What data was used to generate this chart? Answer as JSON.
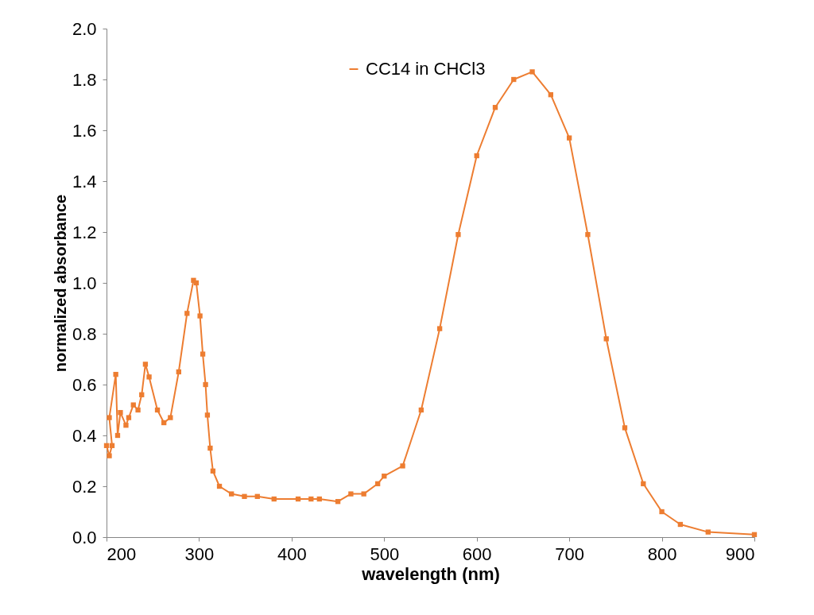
{
  "chart_data": {
    "type": "line",
    "xlabel": "wavelength (nm)",
    "ylabel": "normalized absorbance",
    "xlim": [
      200,
      900
    ],
    "xticks": [
      200,
      300,
      400,
      500,
      600,
      700,
      800,
      900
    ],
    "ylim": [
      0,
      2
    ],
    "yticks": [
      {
        "value": 0,
        "label": "0.0"
      },
      0.2,
      0.4,
      0.6,
      0.8,
      {
        "value": 1,
        "label": "1.0"
      },
      1.2,
      1.4,
      1.6,
      1.8,
      {
        "value": 2,
        "label": "2.0"
      }
    ],
    "grid": false,
    "legend": "top",
    "marker": "square",
    "line_style": "solid",
    "series": [
      {
        "name": "CC14 in CHCl3",
        "color": "#ed7d31",
        "x": [
          200,
          203,
          206,
          203,
          210,
          212,
          215,
          221,
          224,
          229,
          234,
          238,
          242,
          246,
          255,
          262,
          269,
          278,
          287,
          294,
          297,
          301,
          304,
          307,
          309,
          312,
          315,
          322,
          335,
          349,
          363,
          381,
          407,
          421,
          430,
          450,
          464,
          478,
          493,
          500,
          520,
          540,
          560,
          580,
          600,
          620,
          640,
          660,
          680,
          700,
          720,
          740,
          760,
          780,
          800,
          820,
          850,
          900
        ],
        "values": [
          0.36,
          0.32,
          0.36,
          0.47,
          0.64,
          0.4,
          0.49,
          0.44,
          0.47,
          0.52,
          0.5,
          0.56,
          0.68,
          0.63,
          0.5,
          0.45,
          0.47,
          0.65,
          0.88,
          1.01,
          1.0,
          0.87,
          0.72,
          0.6,
          0.48,
          0.35,
          0.26,
          0.2,
          0.17,
          0.16,
          0.16,
          0.15,
          0.15,
          0.15,
          0.15,
          0.14,
          0.17,
          0.17,
          0.21,
          0.24,
          0.28,
          0.5,
          0.82,
          1.19,
          1.5,
          1.69,
          1.8,
          1.83,
          1.74,
          1.57,
          1.19,
          0.78,
          0.43,
          0.21,
          0.1,
          0.05,
          0.02,
          0.01
        ]
      }
    ]
  }
}
